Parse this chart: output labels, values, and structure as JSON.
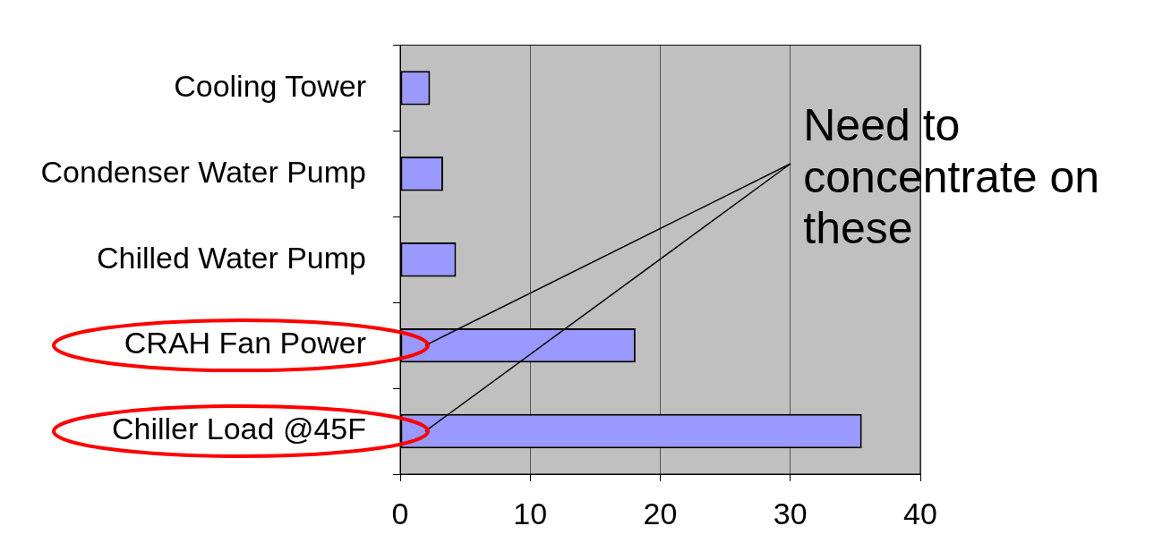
{
  "chart_data": {
    "type": "bar",
    "orientation": "horizontal",
    "categories": [
      "Cooling Tower",
      "Condenser Water Pump",
      "Chilled Water Pump",
      "CRAH Fan Power",
      "Chiller Load @45F"
    ],
    "values": [
      2.3,
      3.3,
      4.3,
      18.1,
      35.5
    ],
    "color": "#9999ff",
    "xlim": [
      0,
      40
    ],
    "xticks": [
      0,
      10,
      20,
      30,
      40
    ],
    "grid": "x",
    "legend": false,
    "annotations": [
      "Need to concentrate on these"
    ]
  }
}
